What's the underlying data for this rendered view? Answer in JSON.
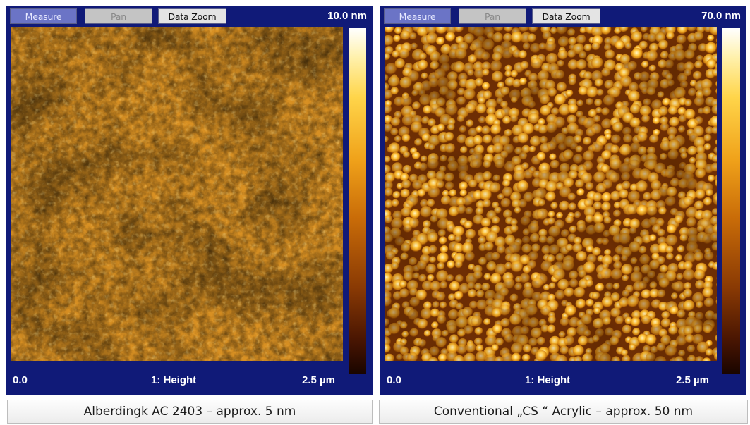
{
  "left": {
    "toolbar": {
      "measure": "Measure",
      "pan": "Pan",
      "data_zoom": "Data Zoom"
    },
    "z_max": "10.0 nm",
    "scale_min": "0.0",
    "channel": "1: Height",
    "scale_size": "2.5 µm",
    "caption": "Alberdingk AC 2403 – approx. 5 nm"
  },
  "right": {
    "toolbar": {
      "measure": "Measure",
      "pan": "Pan",
      "data_zoom": "Data Zoom"
    },
    "z_max": "70.0 nm",
    "scale_min": "0.0",
    "channel": "1: Height",
    "scale_size": "2.5 µm",
    "caption": "Conventional „CS “ Acrylic – approx. 50 nm"
  },
  "colors": {
    "panel_bg": "#101a78",
    "measure_btn": "#6b74c6",
    "afm_colormap": [
      "#1a0500",
      "#8a3a04",
      "#f0a21a",
      "#ffd54a",
      "#ffffff"
    ]
  }
}
